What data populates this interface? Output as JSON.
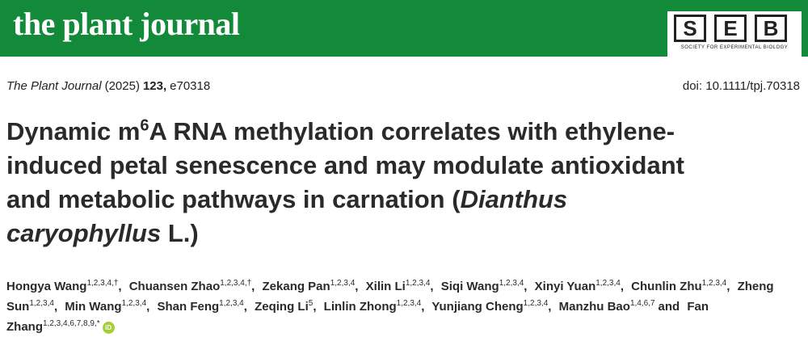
{
  "header": {
    "journal": "the plant journal",
    "logo": {
      "letters": [
        "S",
        "E",
        "B"
      ],
      "subtitle": "SOCIETY FOR EXPERIMENTAL BIOLOGY"
    }
  },
  "citation": {
    "journal": "The Plant Journal",
    "year": "(2025)",
    "volume": "123,",
    "article": "e70318",
    "doi": "doi: 10.1111/tpj.70318"
  },
  "title": [
    {
      "text": "Dynamic m"
    },
    {
      "text": "6",
      "style": "sup"
    },
    {
      "text": "A RNA methylation correlates with ethylene-induced petal senescence and may modulate antioxidant and metabolic pathways in carnation ("
    },
    {
      "text": "Dianthus caryophyllus",
      "style": "italic"
    },
    {
      "text": " L.)"
    }
  ],
  "authors": [
    {
      "name": "Hongya Wang",
      "aff": "1,2,3,4,†",
      "sep": ","
    },
    {
      "name": "Chuansen Zhao",
      "aff": "1,2,3,4,†",
      "sep": ","
    },
    {
      "name": "Zekang Pan",
      "aff": "1,2,3,4",
      "sep": ","
    },
    {
      "name": "Xilin Li",
      "aff": "1,2,3,4",
      "sep": ","
    },
    {
      "name": "Siqi Wang",
      "aff": "1,2,3,4",
      "sep": ","
    },
    {
      "name": "Xinyi Yuan",
      "aff": "1,2,3,4",
      "sep": ","
    },
    {
      "name": "Chunlin Zhu",
      "aff": "1,2,3,4",
      "sep": ","
    },
    {
      "name": "Zheng Sun",
      "aff": "1,2,3,4",
      "sep": ","
    },
    {
      "name": "Min Wang",
      "aff": "1,2,3,4",
      "sep": ","
    },
    {
      "name": "Shan Feng",
      "aff": "1,2,3,4",
      "sep": ","
    },
    {
      "name": "Zeqing Li",
      "aff": "5",
      "sep": ","
    },
    {
      "name": "Linlin Zhong",
      "aff": "1,2,3,4",
      "sep": ","
    },
    {
      "name": "Yunjiang Cheng",
      "aff": "1,2,3,4",
      "sep": ","
    },
    {
      "name": "Manzhu Bao",
      "aff": "1,4,6,7",
      "sep": "and"
    },
    {
      "name": "Fan Zhang",
      "aff": "1,2,3,4,6,7,8,9,*",
      "orcid": "iD"
    }
  ]
}
